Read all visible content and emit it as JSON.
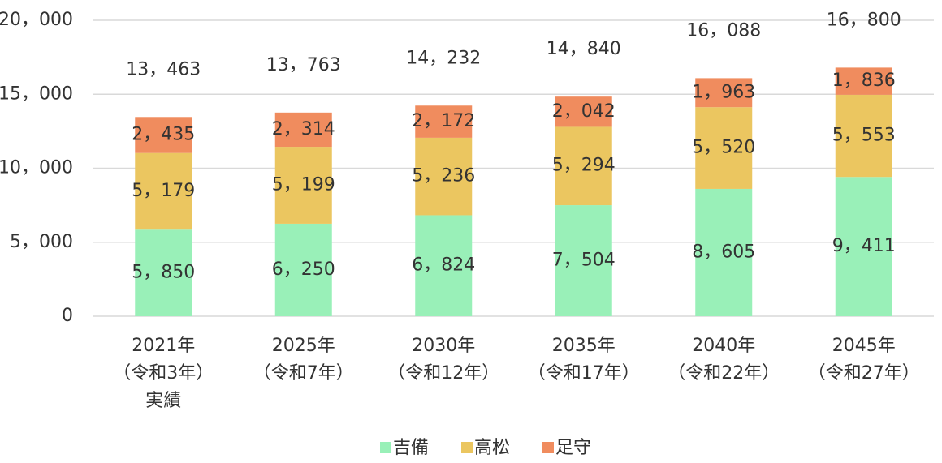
{
  "chart_data": {
    "type": "stacked_bar",
    "categories": [
      [
        "2021年",
        "（令和3年）",
        "実績"
      ],
      [
        "2025年",
        "（令和7年）"
      ],
      [
        "2030年",
        "（令和12年）"
      ],
      [
        "2035年",
        "（令和17年）"
      ],
      [
        "2040年",
        "（令和22年）"
      ],
      [
        "2045年",
        "（令和27年）"
      ]
    ],
    "series": [
      {
        "name": "吉備",
        "color": "#99f0b8",
        "values": [
          5850,
          6250,
          6824,
          7504,
          8605,
          9411
        ],
        "value_labels": [
          "5，850",
          "6，250",
          "6，824",
          "7，504",
          "8，605",
          "9，411"
        ]
      },
      {
        "name": "高松",
        "color": "#ebc660",
        "values": [
          5179,
          5199,
          5236,
          5294,
          5520,
          5553
        ],
        "value_labels": [
          "5，179",
          "5，199",
          "5，236",
          "5，294",
          "5，520",
          "5，553"
        ]
      },
      {
        "name": "足守",
        "color": "#f08c5e",
        "values": [
          2435,
          2314,
          2172,
          2042,
          1963,
          1836
        ],
        "value_labels": [
          "2，435",
          "2，314",
          "2，172",
          "2，042",
          "1，963",
          "1，836"
        ]
      }
    ],
    "totals": [
      13463,
      13763,
      14232,
      14840,
      16088,
      16800
    ],
    "total_labels": [
      "13，463",
      "13，763",
      "14，232",
      "14，840",
      "16，088",
      "16，800"
    ],
    "ylim": [
      0,
      20000
    ],
    "yticks": [
      0,
      {
        "value": 5000,
        "label": "5，000"
      },
      {
        "value": 10000,
        "label": "10，000"
      },
      {
        "value": 15000,
        "label": "15，000"
      },
      {
        "value": 20000,
        "label": "20，000"
      }
    ],
    "grid": true,
    "legend": "bottom"
  }
}
